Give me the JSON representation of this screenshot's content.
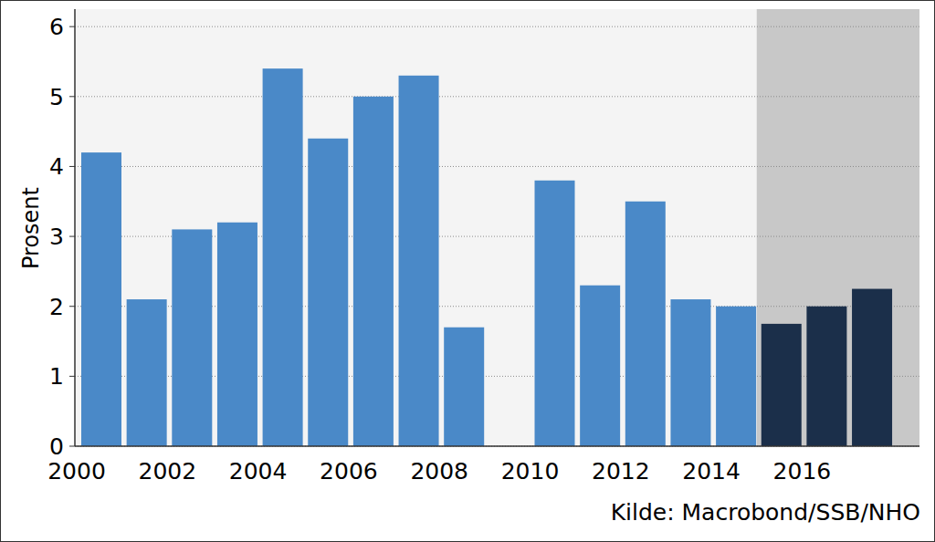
{
  "chart_data": {
    "type": "bar",
    "y_label": "Prosent",
    "source": "Kilde: Macrobond/SSB/NHO",
    "categories": [
      "2000",
      null,
      "2002",
      null,
      "2004",
      null,
      "2006",
      null,
      "2008",
      null,
      "2010",
      null,
      "2012",
      null,
      "2014",
      null,
      "2016",
      null
    ],
    "values": [
      4.2,
      2.1,
      3.1,
      3.2,
      5.4,
      4.4,
      5.0,
      5.3,
      1.7,
      0,
      3.8,
      2.3,
      3.5,
      2.1,
      2.0,
      1.75,
      2.0,
      2.25
    ],
    "colors": [
      "#4a89c8",
      "#4a89c8",
      "#4a89c8",
      "#4a89c8",
      "#4a89c8",
      "#4a89c8",
      "#4a89c8",
      "#4a89c8",
      "#4a89c8",
      "#4a89c8",
      "#4a89c8",
      "#4a89c8",
      "#4a89c8",
      "#4a89c8",
      "#4a89c8",
      "#1b2f4a",
      "#1b2f4a",
      "#1b2f4a"
    ],
    "ylim": [
      0,
      6.25
    ],
    "yticks": [
      0,
      1,
      2,
      3,
      4,
      5,
      6
    ],
    "grid": true
  }
}
